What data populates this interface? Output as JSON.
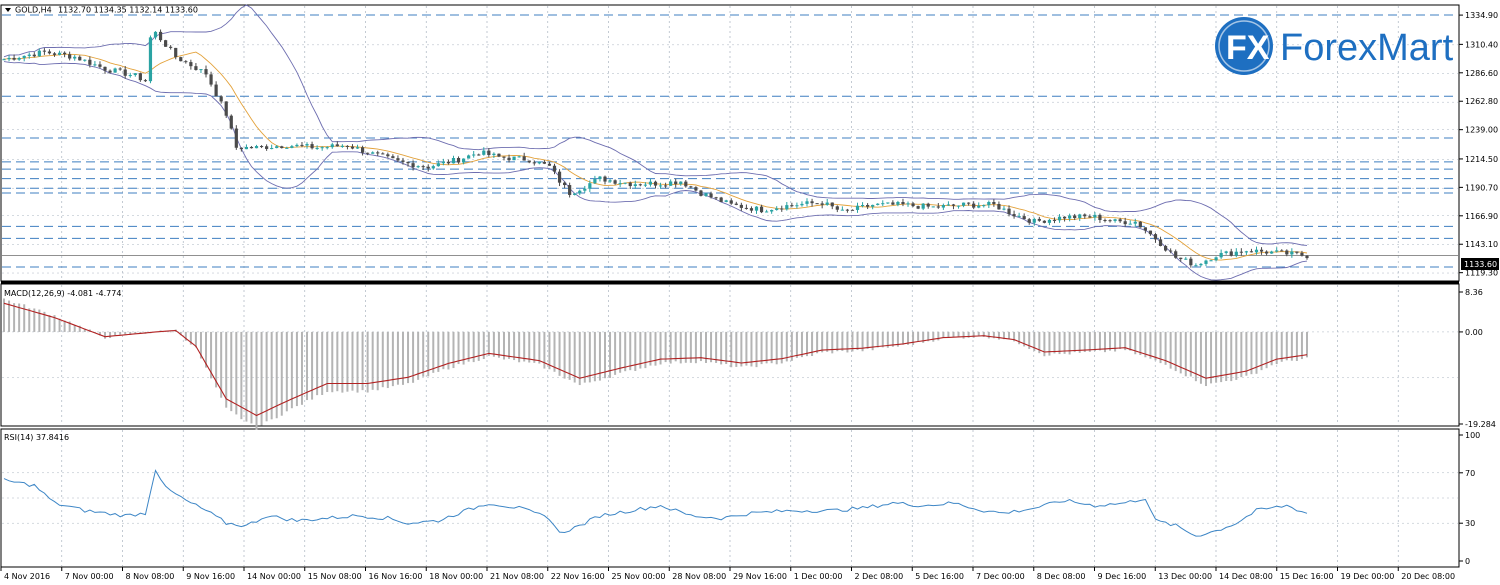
{
  "window": {
    "symbol_title": "GOLD,H4",
    "ohlc": "1132.70 1134.35 1132.14 1133.60",
    "current_price": "1133.60"
  },
  "logo": {
    "text": "ForexMart",
    "mark": "FX"
  },
  "colors": {
    "bull": "#2aa3a3",
    "bear": "#4a4a4a",
    "bollinger": "#6e6eb0",
    "ma": "#e3a23b",
    "level": "#3f7fc0",
    "macd_hist": "#b4b4b4",
    "macd_signal": "#b22222",
    "rsi": "#3d86c6",
    "grid": "#aab4c0"
  },
  "x_axis_labels": [
    "4 Nov 2016",
    "7 Nov 00:00",
    "8 Nov 08:00",
    "9 Nov 16:00",
    "14 Nov 00:00",
    "15 Nov 08:00",
    "16 Nov 16:00",
    "18 Nov 00:00",
    "21 Nov 08:00",
    "22 Nov 16:00",
    "25 Nov 00:00",
    "28 Nov 08:00",
    "29 Nov 16:00",
    "1 Dec 00:00",
    "2 Dec 08:00",
    "5 Dec 16:00",
    "7 Dec 00:00",
    "8 Dec 08:00",
    "9 Dec 16:00",
    "13 Dec 00:00",
    "14 Dec 08:00",
    "15 Dec 16:00",
    "19 Dec 00:00",
    "20 Dec 08:00"
  ],
  "price_panel": {
    "y_labels": [
      "1334.90",
      "1310.40",
      "1286.60",
      "1262.80",
      "1239.00",
      "1214.50",
      "1190.70",
      "1166.90",
      "1143.10",
      "1119.30"
    ],
    "ylim": [
      1114,
      1340
    ],
    "levels": [
      1335,
      1267,
      1232,
      1212,
      1206,
      1198,
      1190,
      1186,
      1158,
      1148,
      1124
    ]
  },
  "macd_panel": {
    "label": "MACD(12,26,9) -4.081 -4.774",
    "y_labels": [
      "8.36",
      "0.00",
      "-19.284"
    ],
    "ylim": [
      -19.284,
      8.36
    ]
  },
  "rsi_panel": {
    "label": "RSI(14) 37.8416",
    "y_labels": [
      "100",
      "70",
      "30",
      "0"
    ],
    "ylim": [
      0,
      100
    ]
  },
  "chart_data": {
    "type": "candlestick",
    "symbol": "GOLD,H4",
    "x_tick_labels": [
      "4 Nov 2016",
      "7 Nov 00:00",
      "8 Nov 08:00",
      "9 Nov 16:00",
      "14 Nov 00:00",
      "15 Nov 08:00",
      "16 Nov 16:00",
      "18 Nov 00:00",
      "21 Nov 08:00",
      "22 Nov 16:00",
      "25 Nov 00:00",
      "28 Nov 08:00",
      "29 Nov 16:00",
      "1 Dec 00:00",
      "2 Dec 08:00",
      "5 Dec 16:00",
      "7 Dec 00:00",
      "8 Dec 08:00",
      "9 Dec 16:00",
      "13 Dec 00:00",
      "14 Dec 08:00",
      "15 Dec 16:00",
      "19 Dec 00:00",
      "20 Dec 08:00"
    ],
    "close_path": [
      [
        0,
        1298
      ],
      [
        8,
        1304
      ],
      [
        14,
        1300
      ],
      [
        20,
        1290
      ],
      [
        26,
        1284
      ],
      [
        28,
        1280
      ],
      [
        29,
        1316
      ],
      [
        30,
        1320
      ],
      [
        34,
        1300
      ],
      [
        40,
        1286
      ],
      [
        44,
        1252
      ],
      [
        46,
        1224
      ],
      [
        50,
        1224
      ],
      [
        56,
        1226
      ],
      [
        62,
        1224
      ],
      [
        68,
        1226
      ],
      [
        72,
        1220
      ],
      [
        78,
        1212
      ],
      [
        84,
        1208
      ],
      [
        90,
        1214
      ],
      [
        94,
        1220
      ],
      [
        98,
        1216
      ],
      [
        104,
        1214
      ],
      [
        108,
        1208
      ],
      [
        110,
        1196
      ],
      [
        112,
        1186
      ],
      [
        118,
        1198
      ],
      [
        124,
        1194
      ],
      [
        130,
        1194
      ],
      [
        134,
        1196
      ],
      [
        138,
        1186
      ],
      [
        144,
        1176
      ],
      [
        150,
        1172
      ],
      [
        156,
        1176
      ],
      [
        162,
        1178
      ],
      [
        166,
        1170
      ],
      [
        172,
        1176
      ],
      [
        178,
        1176
      ],
      [
        184,
        1174
      ],
      [
        190,
        1176
      ],
      [
        196,
        1176
      ],
      [
        200,
        1168
      ],
      [
        204,
        1162
      ],
      [
        210,
        1166
      ],
      [
        216,
        1166
      ],
      [
        220,
        1162
      ],
      [
        224,
        1162
      ],
      [
        228,
        1148
      ],
      [
        232,
        1132
      ],
      [
        236,
        1126
      ],
      [
        240,
        1134
      ],
      [
        246,
        1138
      ],
      [
        252,
        1136
      ],
      [
        258,
        1133.6
      ]
    ],
    "macd_path": [
      [
        0,
        6
      ],
      [
        10,
        3
      ],
      [
        20,
        -1
      ],
      [
        30,
        0
      ],
      [
        34,
        0.3
      ],
      [
        38,
        -3
      ],
      [
        44,
        -14
      ],
      [
        50,
        -17.5
      ],
      [
        56,
        -14.5
      ],
      [
        64,
        -10.8
      ],
      [
        72,
        -10.8
      ],
      [
        80,
        -9.5
      ],
      [
        88,
        -6.6
      ],
      [
        96,
        -4.5
      ],
      [
        106,
        -6
      ],
      [
        114,
        -9.7
      ],
      [
        122,
        -7.6
      ],
      [
        130,
        -5.7
      ],
      [
        138,
        -5.4
      ],
      [
        146,
        -6.5
      ],
      [
        154,
        -5.6
      ],
      [
        162,
        -3.8
      ],
      [
        170,
        -3.4
      ],
      [
        178,
        -2.5
      ],
      [
        186,
        -1.2
      ],
      [
        194,
        -0.8
      ],
      [
        200,
        -1.6
      ],
      [
        206,
        -4.2
      ],
      [
        214,
        -3.8
      ],
      [
        222,
        -3.3
      ],
      [
        230,
        -6
      ],
      [
        238,
        -9.7
      ],
      [
        246,
        -8.2
      ],
      [
        252,
        -5.7
      ],
      [
        258,
        -4.774
      ]
    ],
    "rsi_path": [
      [
        0,
        64
      ],
      [
        6,
        60
      ],
      [
        10,
        46
      ],
      [
        16,
        40
      ],
      [
        24,
        36
      ],
      [
        28,
        38
      ],
      [
        30,
        73
      ],
      [
        32,
        58
      ],
      [
        36,
        48
      ],
      [
        40,
        40
      ],
      [
        44,
        30
      ],
      [
        48,
        28
      ],
      [
        52,
        36
      ],
      [
        58,
        32
      ],
      [
        64,
        34
      ],
      [
        70,
        36
      ],
      [
        76,
        34
      ],
      [
        80,
        30
      ],
      [
        86,
        32
      ],
      [
        90,
        38
      ],
      [
        96,
        46
      ],
      [
        102,
        42
      ],
      [
        108,
        34
      ],
      [
        110,
        22
      ],
      [
        114,
        28
      ],
      [
        118,
        36
      ],
      [
        124,
        40
      ],
      [
        130,
        44
      ],
      [
        136,
        36
      ],
      [
        142,
        34
      ],
      [
        148,
        38
      ],
      [
        156,
        40
      ],
      [
        164,
        40
      ],
      [
        170,
        42
      ],
      [
        176,
        46
      ],
      [
        182,
        44
      ],
      [
        188,
        46
      ],
      [
        194,
        40
      ],
      [
        198,
        38
      ],
      [
        204,
        42
      ],
      [
        210,
        48
      ],
      [
        216,
        44
      ],
      [
        222,
        46
      ],
      [
        226,
        50
      ],
      [
        228,
        32
      ],
      [
        232,
        28
      ],
      [
        236,
        20
      ],
      [
        240,
        24
      ],
      [
        244,
        30
      ],
      [
        248,
        40
      ],
      [
        254,
        44
      ],
      [
        258,
        37.8
      ]
    ]
  }
}
